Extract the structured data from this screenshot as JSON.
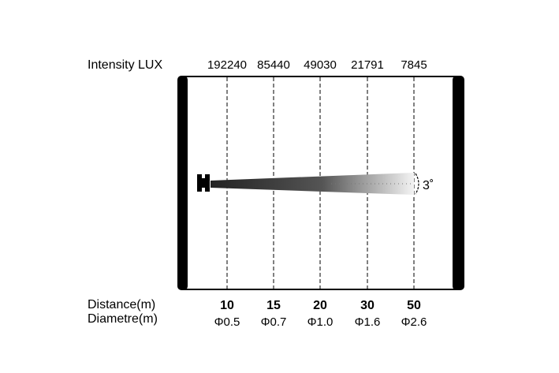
{
  "intensity_label": "Intensity LUX",
  "distance_label": "Distance(m)",
  "diameter_label": "Diametre(m)",
  "beam_angle": "3˚",
  "columns": [
    {
      "lux": "192240",
      "distance": "10",
      "diameter": "Φ0.5"
    },
    {
      "lux": "85440",
      "distance": "15",
      "diameter": "Φ0.7"
    },
    {
      "lux": "49030",
      "distance": "20",
      "diameter": "Φ1.0"
    },
    {
      "lux": "21791",
      "distance": "30",
      "diameter": "Φ1.6"
    },
    {
      "lux": "7845",
      "distance": "50",
      "diameter": "Φ2.6"
    }
  ]
}
